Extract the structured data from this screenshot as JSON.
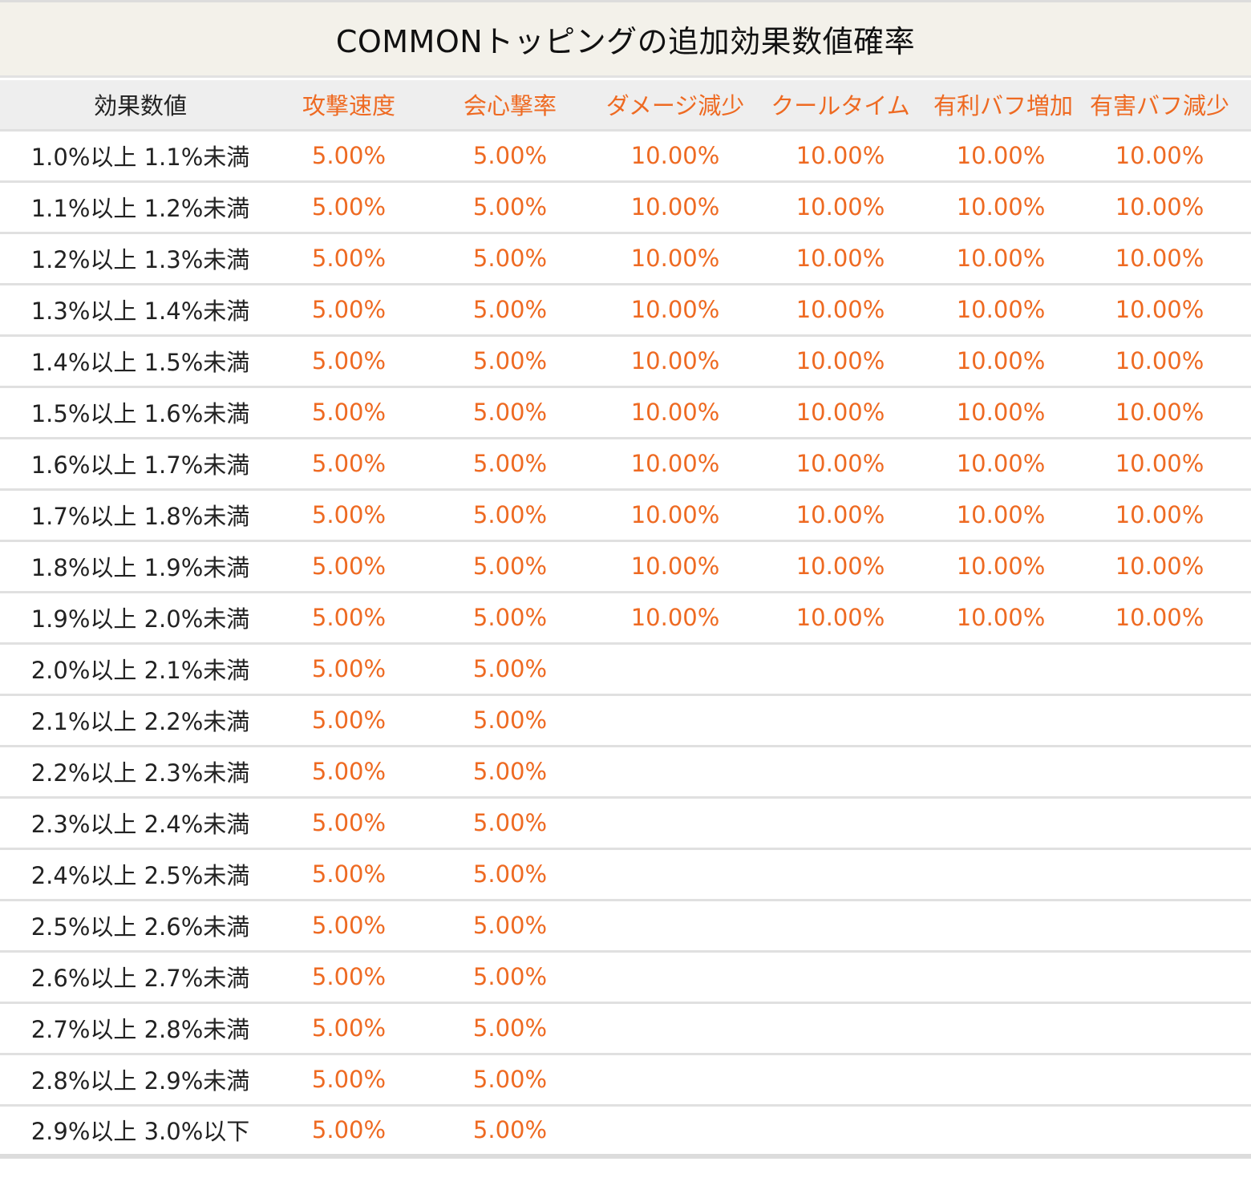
{
  "title": "COMMONトッピングの追加効果数値確率",
  "colors": {
    "accent": "#ee6a22",
    "text": "#222222",
    "title_bg": "#f3f1ea",
    "header_bg": "#eeeeee",
    "rule": "#e0e0e0"
  },
  "table": {
    "headers": [
      "効果数値",
      "攻撃速度",
      "会心撃率",
      "ダメージ減少",
      "クールタイム",
      "有利バフ増加",
      "有害バフ減少"
    ],
    "rows": [
      [
        "1.0%以上 1.1%未満",
        "5.00%",
        "5.00%",
        "10.00%",
        "10.00%",
        "10.00%",
        "10.00%"
      ],
      [
        "1.1%以上 1.2%未満",
        "5.00%",
        "5.00%",
        "10.00%",
        "10.00%",
        "10.00%",
        "10.00%"
      ],
      [
        "1.2%以上 1.3%未満",
        "5.00%",
        "5.00%",
        "10.00%",
        "10.00%",
        "10.00%",
        "10.00%"
      ],
      [
        "1.3%以上 1.4%未満",
        "5.00%",
        "5.00%",
        "10.00%",
        "10.00%",
        "10.00%",
        "10.00%"
      ],
      [
        "1.4%以上 1.5%未満",
        "5.00%",
        "5.00%",
        "10.00%",
        "10.00%",
        "10.00%",
        "10.00%"
      ],
      [
        "1.5%以上 1.6%未満",
        "5.00%",
        "5.00%",
        "10.00%",
        "10.00%",
        "10.00%",
        "10.00%"
      ],
      [
        "1.6%以上 1.7%未満",
        "5.00%",
        "5.00%",
        "10.00%",
        "10.00%",
        "10.00%",
        "10.00%"
      ],
      [
        "1.7%以上 1.8%未満",
        "5.00%",
        "5.00%",
        "10.00%",
        "10.00%",
        "10.00%",
        "10.00%"
      ],
      [
        "1.8%以上 1.9%未満",
        "5.00%",
        "5.00%",
        "10.00%",
        "10.00%",
        "10.00%",
        "10.00%"
      ],
      [
        "1.9%以上 2.0%未満",
        "5.00%",
        "5.00%",
        "10.00%",
        "10.00%",
        "10.00%",
        "10.00%"
      ],
      [
        "2.0%以上 2.1%未満",
        "5.00%",
        "5.00%",
        "",
        "",
        "",
        ""
      ],
      [
        "2.1%以上 2.2%未満",
        "5.00%",
        "5.00%",
        "",
        "",
        "",
        ""
      ],
      [
        "2.2%以上 2.3%未満",
        "5.00%",
        "5.00%",
        "",
        "",
        "",
        ""
      ],
      [
        "2.3%以上 2.4%未満",
        "5.00%",
        "5.00%",
        "",
        "",
        "",
        ""
      ],
      [
        "2.4%以上 2.5%未満",
        "5.00%",
        "5.00%",
        "",
        "",
        "",
        ""
      ],
      [
        "2.5%以上 2.6%未満",
        "5.00%",
        "5.00%",
        "",
        "",
        "",
        ""
      ],
      [
        "2.6%以上 2.7%未満",
        "5.00%",
        "5.00%",
        "",
        "",
        "",
        ""
      ],
      [
        "2.7%以上 2.8%未満",
        "5.00%",
        "5.00%",
        "",
        "",
        "",
        ""
      ],
      [
        "2.8%以上 2.9%未満",
        "5.00%",
        "5.00%",
        "",
        "",
        "",
        ""
      ],
      [
        "2.9%以上 3.0%以下",
        "5.00%",
        "5.00%",
        "",
        "",
        "",
        ""
      ]
    ]
  }
}
